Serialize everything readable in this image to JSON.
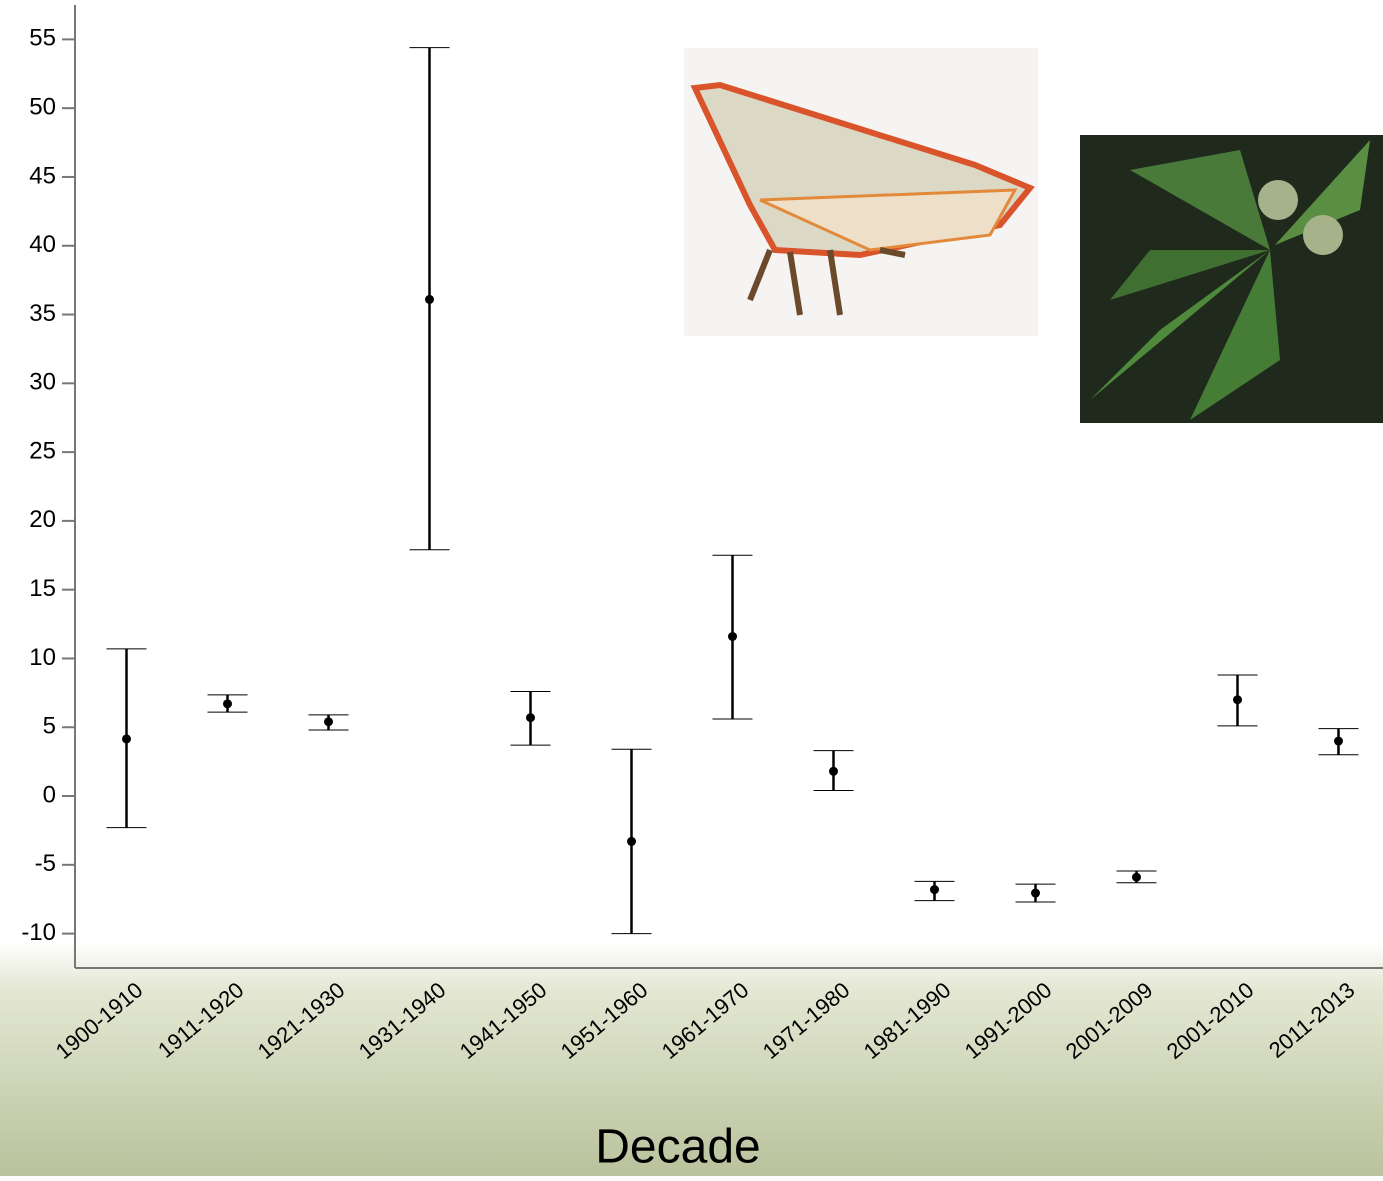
{
  "chart_data": {
    "type": "errorbar",
    "x_label": "Decade",
    "categories": [
      "1900-1910",
      "1911-1920",
      "1921-1930",
      "1931-1940",
      "1941-1950",
      "1951-1960",
      "1961-1970",
      "1971-1980",
      "1981-1990",
      "1991-2000",
      "2001-2009",
      "2001-2010",
      "2011-2013"
    ],
    "values": [
      4.15,
      6.7,
      5.4,
      36.1,
      5.7,
      -3.3,
      11.6,
      1.8,
      -6.8,
      -7.05,
      -5.9,
      7.0,
      4.0
    ],
    "lower": [
      -2.3,
      6.1,
      4.8,
      17.9,
      3.7,
      -10.0,
      5.6,
      0.4,
      -7.6,
      -7.7,
      -6.3,
      5.1,
      3.0
    ],
    "upper": [
      10.7,
      7.35,
      5.9,
      54.4,
      7.6,
      3.4,
      17.5,
      3.3,
      -6.2,
      -6.4,
      -5.45,
      8.8,
      4.9
    ],
    "color": "#000000",
    "ylim": [
      -12.5,
      57.5
    ],
    "yticks": [
      -10,
      -5,
      0,
      5,
      10,
      15,
      20,
      25,
      30,
      35,
      40,
      45,
      50,
      55
    ]
  }
}
